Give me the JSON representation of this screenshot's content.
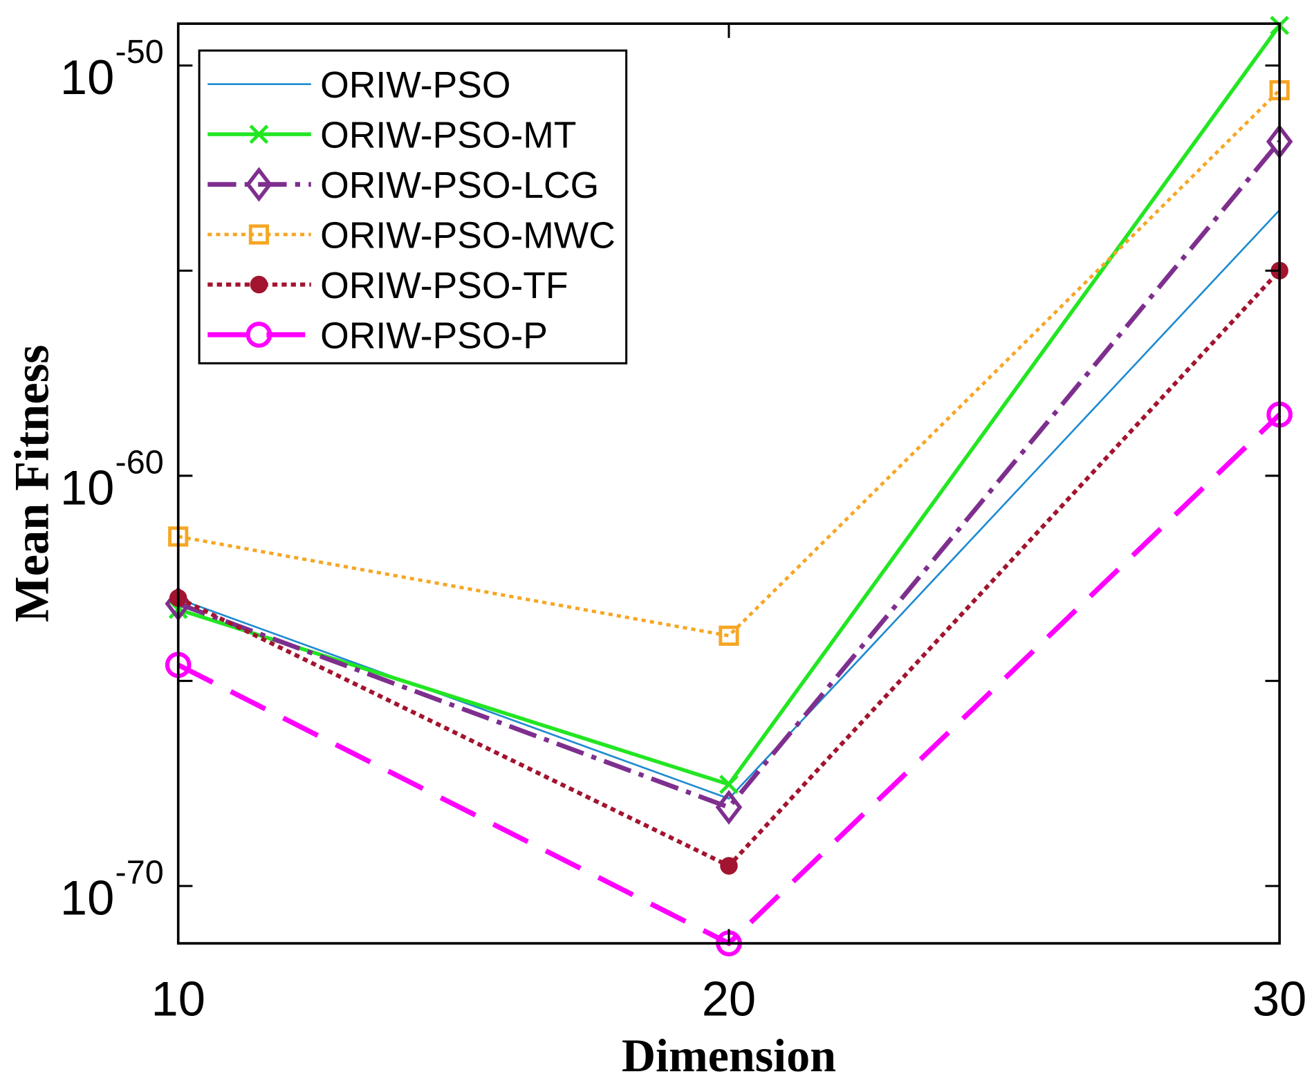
{
  "chart_data": {
    "type": "line",
    "xlabel": "Dimension",
    "ylabel": "Mean Fitness",
    "x": [
      10,
      20,
      30
    ],
    "xlim": [
      10,
      30
    ],
    "x_ticks": {
      "values": [
        10,
        20,
        30
      ],
      "labels": [
        "10",
        "20",
        "30"
      ]
    },
    "yscale": "log",
    "ylim": [
      4e-72,
      1.05e-49
    ],
    "y_ticks": {
      "major": [
        {
          "value": 1e-50,
          "base": "10",
          "exponent": "-50"
        },
        {
          "value": 1e-60,
          "base": "10",
          "exponent": "-60"
        },
        {
          "value": 1e-70,
          "base": "10",
          "exponent": "-70"
        }
      ],
      "minor": [
        1e-55,
        1e-65
      ]
    },
    "grid": false,
    "legend": "top-left",
    "series": [
      {
        "name": "ORIW-PSO",
        "color": "#1f8bd0",
        "values": [
          1e-63,
          1.35e-68,
          3e-54
        ]
      },
      {
        "name": "ORIW-PSO-MT",
        "color": "#22e622",
        "values": [
          5.5e-64,
          3e-68,
          9.5e-50
        ]
      },
      {
        "name": "ORIW-PSO-LCG",
        "color": "#7e2f8e",
        "values": [
          7.6e-64,
          8.3e-69,
          1.4e-52
        ]
      },
      {
        "name": "ORIW-PSO-MWC",
        "color": "#f6a623",
        "values": [
          3.3e-62,
          1.26e-64,
          2.5e-51
        ]
      },
      {
        "name": "ORIW-PSO-TF",
        "color": "#a2142f",
        "values": [
          1.05e-63,
          3.1e-70,
          1e-55
        ]
      },
      {
        "name": "ORIW-PSO-P",
        "color": "#ff00ff",
        "values": [
          2.45e-65,
          4e-72,
          3.1e-59
        ]
      }
    ]
  }
}
